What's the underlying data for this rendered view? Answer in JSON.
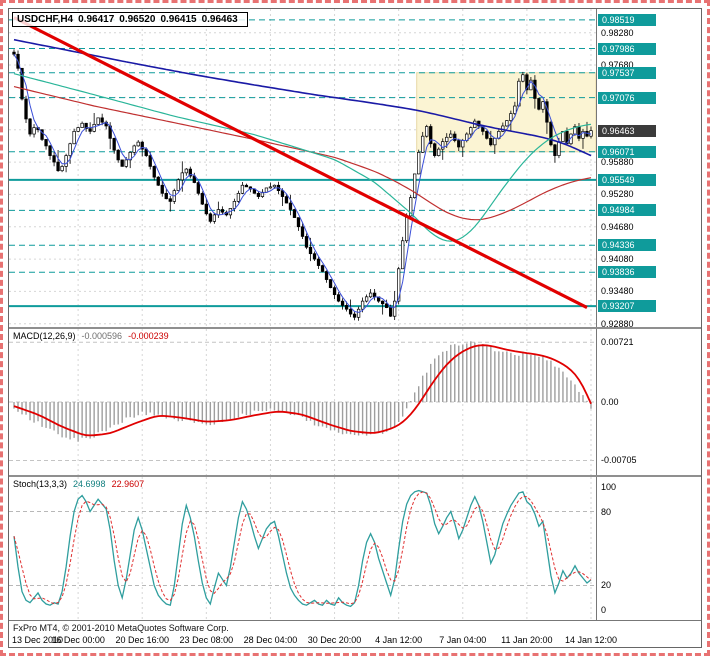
{
  "colors": {
    "accent_teal": "#0f9b9b",
    "grid": "#d6d6d6",
    "zone_fill": "#fbf4d3",
    "zone_edge": "#e7d9a6",
    "trend_red": "#e10000",
    "ma_blue": "#1a1aa6",
    "ma_blue_fast": "#3b4fd8",
    "ma_red": "#c03030",
    "ma_teal": "#2ab599",
    "macd_hist": "#9e9e9e",
    "signal_red": "#e00000",
    "stoch_main": "#2f9e9e",
    "stoch_signal": "#e03030",
    "current_box": "#3b3b3b",
    "candle": "#000000"
  },
  "footer": {
    "copyright": "FxPro MT4, © 2001-2010 MetaQuotes Software Corp."
  },
  "chart_data": [
    {
      "type": "candlestick",
      "title_symbol": "USDCHF,H4",
      "ohlc": {
        "open": "0.96417",
        "high": "0.96520",
        "low": "0.96415",
        "close": "0.96463"
      },
      "bars": 145,
      "open0": 0.9792,
      "y_min": 0.9282,
      "y_max": 0.9872,
      "grid_ticks": [
        0.9288,
        0.9348,
        0.9408,
        0.9468,
        0.9528,
        0.9588,
        0.9648,
        0.9708,
        0.9768,
        0.9828
      ],
      "levels": [
        {
          "price": 0.98519,
          "style": "dashed"
        },
        {
          "price": 0.97986,
          "style": "dashed"
        },
        {
          "price": 0.97537,
          "style": "dashed"
        },
        {
          "price": 0.97076,
          "style": "dashed"
        },
        {
          "price": 0.96071,
          "style": "dashed"
        },
        {
          "price": 0.95549,
          "style": "solid"
        },
        {
          "price": 0.94984,
          "style": "dashed"
        },
        {
          "price": 0.94336,
          "style": "dashed"
        },
        {
          "price": 0.93836,
          "style": "dashed"
        },
        {
          "price": 0.93207,
          "style": "solid"
        }
      ],
      "current_price": 0.96463,
      "zone": {
        "from_bar": 101,
        "to_bar": 145,
        "top": 0.97537,
        "bottom": 0.96071
      },
      "trendline": {
        "from_bar": 0,
        "from_price": 0.9856,
        "to_bar": 143,
        "to_price": 0.9318
      },
      "closes": [
        0.9788,
        0.9762,
        0.9705,
        0.9668,
        0.964,
        0.9652,
        0.9648,
        0.963,
        0.9618,
        0.96,
        0.9588,
        0.9572,
        0.958,
        0.96,
        0.9622,
        0.9645,
        0.9652,
        0.966,
        0.965,
        0.9645,
        0.9658,
        0.967,
        0.9662,
        0.9655,
        0.9632,
        0.961,
        0.9592,
        0.958,
        0.9592,
        0.9606,
        0.9618,
        0.9625,
        0.9612,
        0.96,
        0.958,
        0.956,
        0.9545,
        0.953,
        0.952,
        0.9515,
        0.9535,
        0.9555,
        0.9568,
        0.9575,
        0.9562,
        0.955,
        0.953,
        0.951,
        0.9492,
        0.9478,
        0.949,
        0.95,
        0.9495,
        0.949,
        0.9502,
        0.9515,
        0.953,
        0.9545,
        0.9542,
        0.9538,
        0.953,
        0.9524,
        0.9532,
        0.954,
        0.9542,
        0.9545,
        0.9535,
        0.9524,
        0.9512,
        0.95,
        0.9485,
        0.9468,
        0.945,
        0.943,
        0.9418,
        0.9408,
        0.9396,
        0.9385,
        0.937,
        0.9355,
        0.9342,
        0.933,
        0.9322,
        0.9315,
        0.9306,
        0.93,
        0.9315,
        0.933,
        0.9338,
        0.9345,
        0.9338,
        0.933,
        0.9325,
        0.9318,
        0.9302,
        0.933,
        0.939,
        0.9442,
        0.9488,
        0.9522,
        0.9566,
        0.9606,
        0.9636,
        0.9654,
        0.9622,
        0.96,
        0.9612,
        0.9626,
        0.9634,
        0.964,
        0.9628,
        0.9616,
        0.9628,
        0.964,
        0.9652,
        0.9664,
        0.9655,
        0.9645,
        0.9632,
        0.962,
        0.9632,
        0.9645,
        0.9655,
        0.9665,
        0.9678,
        0.9692,
        0.9738,
        0.975,
        0.9722,
        0.974,
        0.9706,
        0.9686,
        0.97,
        0.9662,
        0.962,
        0.96,
        0.9626,
        0.9645,
        0.9622,
        0.964,
        0.9654,
        0.9632,
        0.9645,
        0.9636,
        0.96463
      ],
      "moving_averages": [
        {
          "name": "ma-slow-blue",
          "color_key": "ma_blue",
          "width": 1.6,
          "points": [
            [
              0,
              0.9815
            ],
            [
              15,
              0.9793
            ],
            [
              30,
              0.9771
            ],
            [
              45,
              0.975
            ],
            [
              60,
              0.9731
            ],
            [
              75,
              0.9713
            ],
            [
              90,
              0.9697
            ],
            [
              100,
              0.9685
            ],
            [
              105,
              0.9677
            ],
            [
              110,
              0.9668
            ],
            [
              115,
              0.9659
            ],
            [
              120,
              0.9651
            ],
            [
              125,
              0.9644
            ],
            [
              130,
              0.9637
            ],
            [
              134,
              0.963
            ],
            [
              138,
              0.962
            ],
            [
              141,
              0.961
            ],
            [
              144,
              0.96
            ]
          ]
        },
        {
          "name": "ma-medium-red",
          "color_key": "ma_red",
          "width": 1.2,
          "points": [
            [
              0,
              0.9728
            ],
            [
              20,
              0.9692
            ],
            [
              40,
              0.9661
            ],
            [
              60,
              0.963
            ],
            [
              80,
              0.9597
            ],
            [
              90,
              0.9571
            ],
            [
              95,
              0.9553
            ],
            [
              100,
              0.9532
            ],
            [
              104,
              0.9512
            ],
            [
              108,
              0.9494
            ],
            [
              112,
              0.9483
            ],
            [
              116,
              0.948
            ],
            [
              120,
              0.9487
            ],
            [
              124,
              0.9499
            ],
            [
              128,
              0.9514
            ],
            [
              132,
              0.953
            ],
            [
              136,
              0.9543
            ],
            [
              140,
              0.9553
            ],
            [
              144,
              0.9559
            ]
          ]
        },
        {
          "name": "ma-fast-teal",
          "color_key": "ma_teal",
          "width": 1.2,
          "points": [
            [
              0,
              0.9752
            ],
            [
              20,
              0.9713
            ],
            [
              40,
              0.9673
            ],
            [
              60,
              0.9639
            ],
            [
              80,
              0.9593
            ],
            [
              90,
              0.9551
            ],
            [
              95,
              0.9519
            ],
            [
              100,
              0.9487
            ],
            [
              103,
              0.9463
            ],
            [
              106,
              0.9446
            ],
            [
              109,
              0.9439
            ],
            [
              112,
              0.9447
            ],
            [
              115,
              0.9467
            ],
            [
              118,
              0.9497
            ],
            [
              121,
              0.9529
            ],
            [
              124,
              0.9559
            ],
            [
              127,
              0.9587
            ],
            [
              130,
              0.961
            ],
            [
              133,
              0.9628
            ],
            [
              136,
              0.9641
            ],
            [
              139,
              0.965
            ],
            [
              142,
              0.9656
            ],
            [
              144,
              0.9658
            ]
          ]
        }
      ],
      "fast_blue_period": 4,
      "x_axis": [
        {
          "label": "13 Dec 2010",
          "bar": 0
        },
        {
          "label": "16 Dec 00:00",
          "bar": 16
        },
        {
          "label": "20 Dec 16:00",
          "bar": 32
        },
        {
          "label": "23 Dec 08:00",
          "bar": 48
        },
        {
          "label": "28 Dec 04:00",
          "bar": 64
        },
        {
          "label": "30 Dec 20:00",
          "bar": 80
        },
        {
          "label": "4 Jan 12:00",
          "bar": 96
        },
        {
          "label": "7 Jan 04:00",
          "bar": 112
        },
        {
          "label": "11 Jan 20:00",
          "bar": 128
        },
        {
          "label": "14 Jan 12:00",
          "bar": 144
        }
      ]
    },
    {
      "type": "macd",
      "label": "MACD(12,26,9)",
      "main_value": "-0.000596",
      "signal_value": "-0.000239",
      "y_min": -0.0088,
      "y_max": 0.0088,
      "ticks": [
        {
          "v": 0.00721,
          "label": "0.00721"
        },
        {
          "v": 0,
          "label": "0.00"
        },
        {
          "v": -0.00705,
          "label": "-0.00705"
        }
      ],
      "main": [
        [
          0,
          -0.0009
        ],
        [
          4,
          -0.002
        ],
        [
          8,
          -0.0031
        ],
        [
          12,
          -0.0041
        ],
        [
          16,
          -0.0046
        ],
        [
          20,
          -0.0041
        ],
        [
          24,
          -0.0031
        ],
        [
          28,
          -0.002
        ],
        [
          32,
          -0.0013
        ],
        [
          36,
          -0.0015
        ],
        [
          40,
          -0.002
        ],
        [
          44,
          -0.0024
        ],
        [
          48,
          -0.0027
        ],
        [
          52,
          -0.0024
        ],
        [
          56,
          -0.0017
        ],
        [
          60,
          -0.0012
        ],
        [
          64,
          -0.0009
        ],
        [
          68,
          -0.0013
        ],
        [
          72,
          -0.002
        ],
        [
          76,
          -0.0028
        ],
        [
          80,
          -0.0035
        ],
        [
          84,
          -0.004
        ],
        [
          88,
          -0.0039
        ],
        [
          92,
          -0.0036
        ],
        [
          94,
          -0.0033
        ],
        [
          96,
          -0.0024
        ],
        [
          98,
          -0.001
        ],
        [
          100,
          0.001
        ],
        [
          102,
          0.003
        ],
        [
          104,
          0.0045
        ],
        [
          106,
          0.0056
        ],
        [
          108,
          0.0064
        ],
        [
          110,
          0.0069
        ],
        [
          112,
          0.0071
        ],
        [
          114,
          0.0072
        ],
        [
          116,
          0.007
        ],
        [
          118,
          0.0067
        ],
        [
          120,
          0.0063
        ],
        [
          122,
          0.006
        ],
        [
          124,
          0.0058
        ],
        [
          126,
          0.0058
        ],
        [
          128,
          0.0059
        ],
        [
          130,
          0.0057
        ],
        [
          132,
          0.0054
        ],
        [
          134,
          0.0048
        ],
        [
          136,
          0.004
        ],
        [
          138,
          0.003
        ],
        [
          140,
          0.0019
        ],
        [
          142,
          0.0008
        ],
        [
          144,
          -0.0006
        ]
      ],
      "signal": [
        [
          0,
          -0.0005
        ],
        [
          6,
          -0.0015
        ],
        [
          12,
          -0.003
        ],
        [
          18,
          -0.0041
        ],
        [
          24,
          -0.0038
        ],
        [
          30,
          -0.0026
        ],
        [
          36,
          -0.0016
        ],
        [
          42,
          -0.0019
        ],
        [
          48,
          -0.0024
        ],
        [
          54,
          -0.0022
        ],
        [
          60,
          -0.0016
        ],
        [
          66,
          -0.0011
        ],
        [
          72,
          -0.0015
        ],
        [
          78,
          -0.0026
        ],
        [
          84,
          -0.0035
        ],
        [
          90,
          -0.0038
        ],
        [
          95,
          -0.0031
        ],
        [
          98,
          -0.0021
        ],
        [
          101,
          -0.0003
        ],
        [
          104,
          0.002
        ],
        [
          107,
          0.004
        ],
        [
          110,
          0.0055
        ],
        [
          113,
          0.0064
        ],
        [
          116,
          0.0069
        ],
        [
          119,
          0.0068
        ],
        [
          122,
          0.0064
        ],
        [
          125,
          0.0061
        ],
        [
          128,
          0.0059
        ],
        [
          131,
          0.0057
        ],
        [
          134,
          0.0053
        ],
        [
          137,
          0.0046
        ],
        [
          140,
          0.0035
        ],
        [
          142,
          0.002
        ],
        [
          144,
          -0.0002
        ]
      ]
    },
    {
      "type": "stochastic",
      "label": "Stoch(13,3,3)",
      "main_value": "24.6998",
      "signal_value": "22.9607",
      "y_min": 0,
      "y_max": 100,
      "levels": [
        80,
        20
      ],
      "ticks": [
        {
          "v": 100,
          "label": "100"
        },
        {
          "v": 80,
          "label": "80"
        },
        {
          "v": 20,
          "label": "20"
        },
        {
          "v": 0,
          "label": "0"
        }
      ],
      "main": [
        60,
        35,
        15,
        8,
        6,
        10,
        14,
        8,
        5,
        4,
        6,
        5,
        15,
        35,
        60,
        80,
        90,
        93,
        88,
        80,
        85,
        90,
        86,
        82,
        65,
        40,
        20,
        10,
        25,
        45,
        65,
        75,
        65,
        50,
        35,
        20,
        12,
        8,
        5,
        4,
        20,
        45,
        70,
        85,
        75,
        60,
        40,
        22,
        10,
        5,
        18,
        30,
        25,
        20,
        35,
        55,
        75,
        88,
        82,
        72,
        60,
        50,
        58,
        66,
        70,
        72,
        60,
        45,
        30,
        18,
        12,
        8,
        5,
        4,
        6,
        8,
        5,
        4,
        8,
        5,
        4,
        10,
        6,
        4,
        3,
        6,
        20,
        40,
        55,
        62,
        55,
        42,
        32,
        22,
        12,
        25,
        50,
        72,
        86,
        93,
        96,
        97,
        96,
        95,
        85,
        70,
        62,
        68,
        75,
        80,
        70,
        58,
        65,
        75,
        85,
        92,
        85,
        72,
        55,
        38,
        45,
        58,
        70,
        78,
        85,
        90,
        95,
        96,
        88,
        85,
        78,
        68,
        72,
        50,
        28,
        14,
        22,
        32,
        26,
        30,
        36,
        30,
        26,
        22,
        24.7
      ]
    }
  ]
}
